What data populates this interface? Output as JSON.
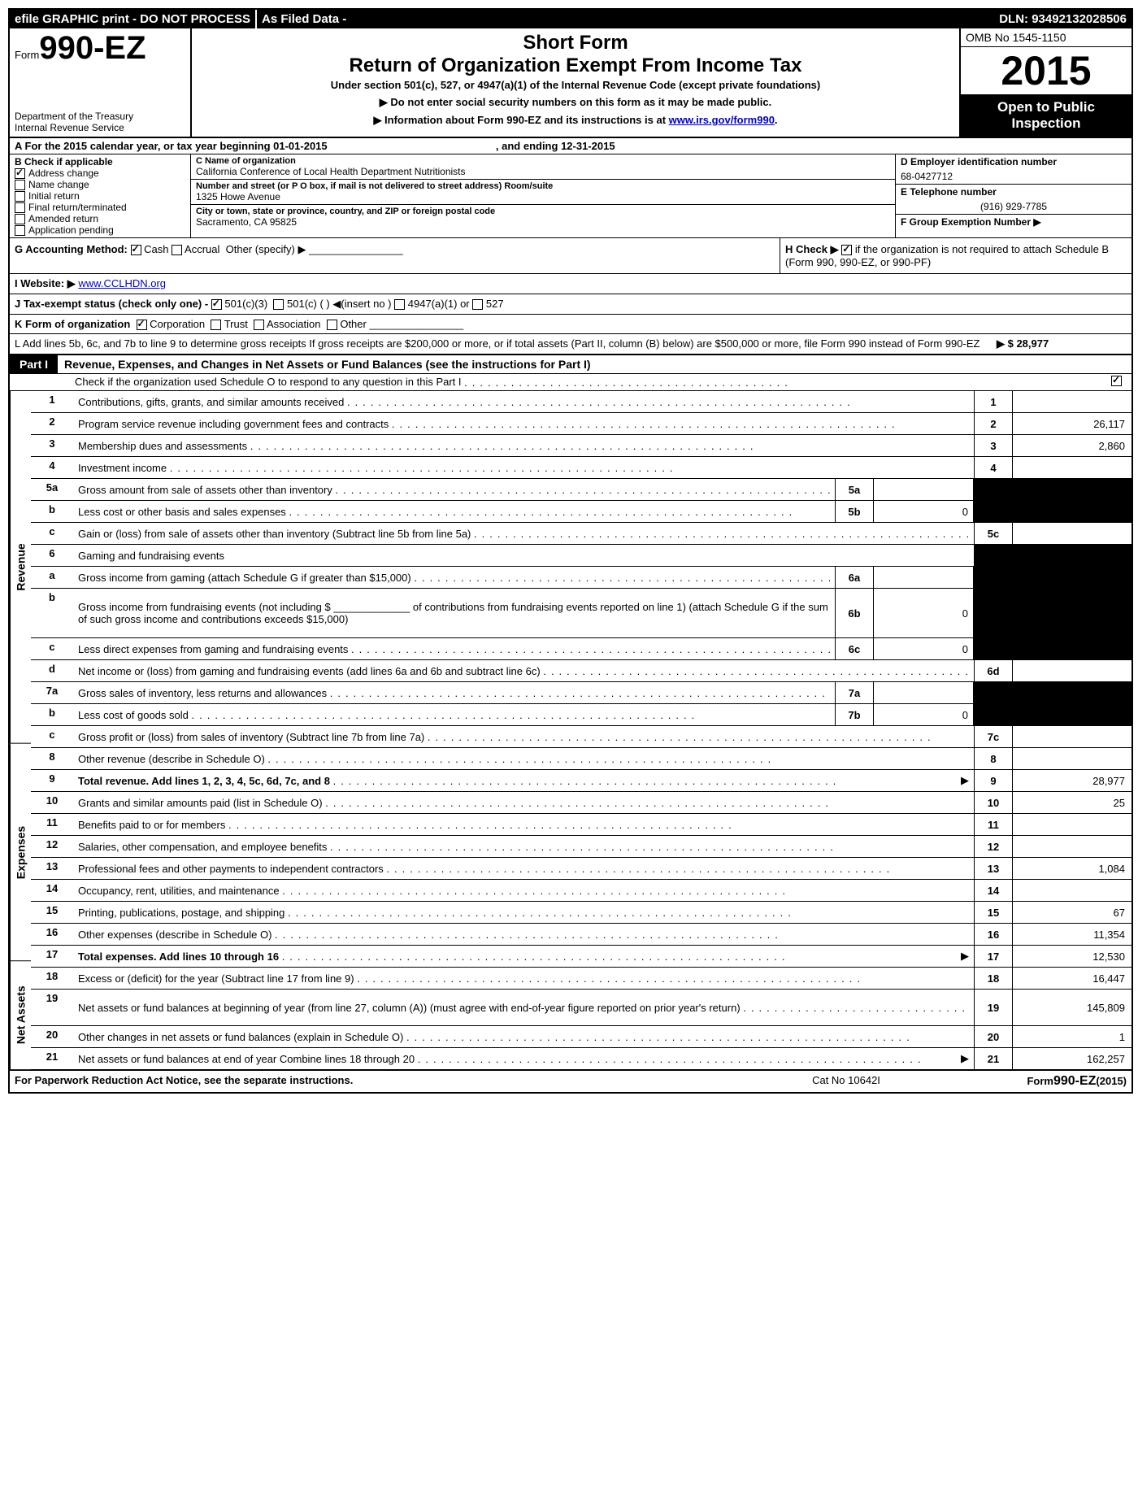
{
  "topbar": {
    "left": "efile GRAPHIC print - DO NOT PROCESS",
    "mid": "As Filed Data -",
    "dln": "DLN: 93492132028506"
  },
  "header": {
    "form_prefix": "Form",
    "form_number": "990-EZ",
    "dept1": "Department of the Treasury",
    "dept2": "Internal Revenue Service",
    "short_form": "Short Form",
    "title": "Return of Organization Exempt From Income Tax",
    "sub": "Under section 501(c), 527, or 4947(a)(1) of the Internal Revenue Code (except private foundations)",
    "note1": "▶ Do not enter social security numbers on this form as it may be made public.",
    "note2_pre": "▶ Information about Form 990-EZ and its instructions is at ",
    "note2_link": "www.irs.gov/form990",
    "omb": "OMB No 1545-1150",
    "year": "2015",
    "open": "Open to Public Inspection"
  },
  "rowA": {
    "pre": "A  For the 2015 calendar year, or tax year beginning ",
    "begin": "01-01-2015",
    "mid": " , and ending ",
    "end": "12-31-2015"
  },
  "colB": {
    "title": "B  Check if applicable",
    "items": [
      "Address change",
      "Name change",
      "Initial return",
      "Final return/terminated",
      "Amended return",
      "Application pending"
    ],
    "checked": [
      true,
      false,
      false,
      false,
      false,
      false
    ]
  },
  "colC": {
    "name_label": "C Name of organization",
    "name": "California Conference of Local Health Department Nutritionists",
    "street_label": "Number and street (or P  O  box, if mail is not delivered to street address) Room/suite",
    "street": "1325 Howe Avenue",
    "city_label": "City or town, state or province, country, and ZIP or foreign postal code",
    "city": "Sacramento, CA  95825"
  },
  "colD": {
    "ein_label": "D Employer identification number",
    "ein": "68-0427712",
    "phone_label": "E Telephone number",
    "phone": "(916) 929-7785",
    "group_label": "F Group Exemption Number    ▶"
  },
  "rowG": {
    "label": "G Accounting Method:",
    "cash": "Cash",
    "accrual": "Accrual",
    "other": "Other (specify) ▶"
  },
  "rowH": {
    "text1": "H  Check ▶",
    "text2": "if the organization is not required to attach Schedule B (Form 990, 990-EZ, or 990-PF)"
  },
  "rowI": {
    "label": "I Website: ▶",
    "url": "www.CCLHDN.org"
  },
  "rowJ": {
    "label": "J Tax-exempt status (check only one) -",
    "opt1": "501(c)(3)",
    "opt2": "501(c) (  ) ◀(insert no )",
    "opt3": "4947(a)(1) or",
    "opt4": "527"
  },
  "rowK": {
    "label": "K Form of organization",
    "opts": [
      "Corporation",
      "Trust",
      "Association",
      "Other"
    ]
  },
  "rowL": {
    "text": "L Add lines 5b, 6c, and 7b to line 9 to determine gross receipts  If gross receipts are $200,000 or more, or if total assets (Part II, column (B) below) are $500,000 or more, file Form 990 instead of Form 990-EZ",
    "amount": "▶ $ 28,977"
  },
  "part1": {
    "label": "Part I",
    "title": "Revenue, Expenses, and Changes in Net Assets or Fund Balances (see the instructions for Part I)",
    "check_o": "Check if the organization used Schedule O to respond to any question in this Part I"
  },
  "sides": {
    "revenue": "Revenue",
    "expenses": "Expenses",
    "netassets": "Net Assets"
  },
  "lines": {
    "l1": {
      "n": "1",
      "d": "Contributions, gifts, grants, and similar amounts received",
      "box": "1",
      "v": ""
    },
    "l2": {
      "n": "2",
      "d": "Program service revenue including government fees and contracts",
      "box": "2",
      "v": "26,117"
    },
    "l3": {
      "n": "3",
      "d": "Membership dues and assessments",
      "box": "3",
      "v": "2,860"
    },
    "l4": {
      "n": "4",
      "d": "Investment income",
      "box": "4",
      "v": ""
    },
    "l5a": {
      "n": "5a",
      "d": "Gross amount from sale of assets other than inventory",
      "sb": "5a",
      "sv": ""
    },
    "l5b": {
      "n": "b",
      "d": "Less  cost or other basis and sales expenses",
      "sb": "5b",
      "sv": "0"
    },
    "l5c": {
      "n": "c",
      "d": "Gain or (loss) from sale of assets other than inventory (Subtract line 5b from line 5a)",
      "box": "5c",
      "v": ""
    },
    "l6": {
      "n": "6",
      "d": "Gaming and fundraising events"
    },
    "l6a": {
      "n": "a",
      "d": "Gross income from gaming (attach Schedule G if greater than $15,000)",
      "sb": "6a",
      "sv": ""
    },
    "l6b": {
      "n": "b",
      "d": "Gross income from fundraising events (not including $ _____________ of contributions from fundraising events reported on line 1) (attach Schedule G if the sum of such gross income and contributions exceeds $15,000)",
      "sb": "6b",
      "sv": "0"
    },
    "l6c": {
      "n": "c",
      "d": "Less  direct expenses from gaming and fundraising events",
      "sb": "6c",
      "sv": "0"
    },
    "l6d": {
      "n": "d",
      "d": "Net income or (loss) from gaming and fundraising events (add lines 6a and 6b and subtract line 6c)",
      "box": "6d",
      "v": ""
    },
    "l7a": {
      "n": "7a",
      "d": "Gross sales of inventory, less returns and allowances",
      "sb": "7a",
      "sv": ""
    },
    "l7b": {
      "n": "b",
      "d": "Less  cost of goods sold",
      "sb": "7b",
      "sv": "0"
    },
    "l7c": {
      "n": "c",
      "d": "Gross profit or (loss) from sales of inventory (Subtract line 7b from line 7a)",
      "box": "7c",
      "v": ""
    },
    "l8": {
      "n": "8",
      "d": "Other revenue (describe in Schedule O)",
      "box": "8",
      "v": ""
    },
    "l9": {
      "n": "9",
      "d": "Total revenue. Add lines 1, 2, 3, 4, 5c, 6d, 7c, and 8",
      "box": "9",
      "v": "28,977",
      "arrow": true,
      "bold": true
    },
    "l10": {
      "n": "10",
      "d": "Grants and similar amounts paid (list in Schedule O)",
      "box": "10",
      "v": "25"
    },
    "l11": {
      "n": "11",
      "d": "Benefits paid to or for members",
      "box": "11",
      "v": ""
    },
    "l12": {
      "n": "12",
      "d": "Salaries, other compensation, and employee benefits",
      "box": "12",
      "v": ""
    },
    "l13": {
      "n": "13",
      "d": "Professional fees and other payments to independent contractors",
      "box": "13",
      "v": "1,084"
    },
    "l14": {
      "n": "14",
      "d": "Occupancy, rent, utilities, and maintenance",
      "box": "14",
      "v": ""
    },
    "l15": {
      "n": "15",
      "d": "Printing, publications, postage, and shipping",
      "box": "15",
      "v": "67"
    },
    "l16": {
      "n": "16",
      "d": "Other expenses (describe in Schedule O)",
      "box": "16",
      "v": "11,354"
    },
    "l17": {
      "n": "17",
      "d": "Total expenses. Add lines 10 through 16",
      "box": "17",
      "v": "12,530",
      "arrow": true,
      "bold": true
    },
    "l18": {
      "n": "18",
      "d": "Excess or (deficit) for the year (Subtract line 17 from line 9)",
      "box": "18",
      "v": "16,447"
    },
    "l19": {
      "n": "19",
      "d": "Net assets or fund balances at beginning of year (from line 27, column (A)) (must agree with end-of-year figure reported on prior year's return)",
      "box": "19",
      "v": "145,809"
    },
    "l20": {
      "n": "20",
      "d": "Other changes in net assets or fund balances (explain in Schedule O)",
      "box": "20",
      "v": "1"
    },
    "l21": {
      "n": "21",
      "d": "Net assets or fund balances at end of year  Combine lines 18 through 20",
      "box": "21",
      "v": "162,257",
      "arrow": true
    }
  },
  "footer": {
    "left": "For Paperwork Reduction Act Notice, see the separate instructions.",
    "mid": "Cat No  10642I",
    "right": "Form 990-EZ (2015)"
  }
}
